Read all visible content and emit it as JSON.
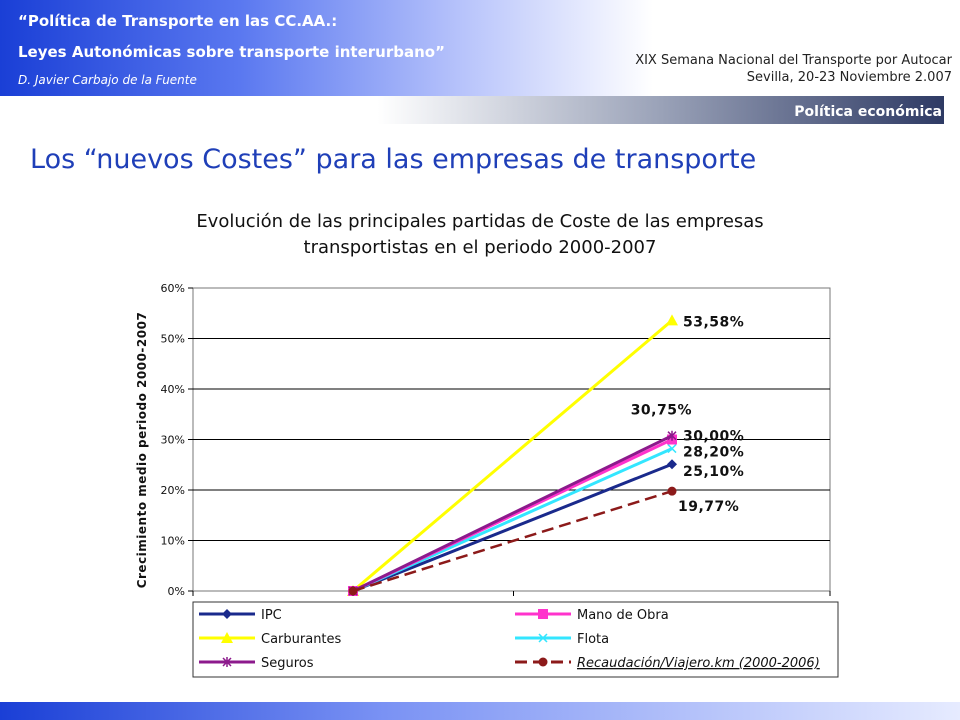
{
  "header": {
    "line1": "“Política de Transporte en las CC.AA.:",
    "line2": "Leyes Autonómicas sobre transporte interurbano”",
    "author": "D. Javier Carbajo de la Fuente",
    "event_line1": "XIX Semana Nacional del Transporte por Autocar",
    "event_line2": "Sevilla, 20-23 Noviembre 2.007",
    "section": "Política económica"
  },
  "page_title": "Los “nuevos Costes” para las empresas de transporte",
  "subtitle_line1": "Evolución de las principales partidas de Coste de las empresas",
  "subtitle_line2": "transportistas en el periodo 2000-2007",
  "colors": {
    "IPC": "#1a2a8c",
    "Mano de Obra": "#ff33cc",
    "Carburantes": "#ffff00",
    "Flota": "#33e6ff",
    "Seguros": "#8c1a8c",
    "Recaudación": "#8c1a1a"
  },
  "chart_data": {
    "type": "line",
    "ylabel": "Crecimiento medio periodo 2000-2007",
    "xlabel": "",
    "ylim": [
      0,
      0.6
    ],
    "yticks": [
      "0%",
      "10%",
      "20%",
      "30%",
      "40%",
      "50%",
      "60%"
    ],
    "x": [
      0,
      1
    ],
    "grid": true,
    "legend_position": "bottom",
    "series": [
      {
        "name": "IPC",
        "values": [
          0,
          0.251
        ],
        "marker": "diamond",
        "dash": false
      },
      {
        "name": "Mano de Obra",
        "values": [
          0,
          0.3
        ],
        "marker": "square",
        "dash": false
      },
      {
        "name": "Carburantes",
        "values": [
          0,
          0.5358
        ],
        "marker": "triangle",
        "dash": false
      },
      {
        "name": "Flota",
        "values": [
          0,
          0.282
        ],
        "marker": "x",
        "dash": false
      },
      {
        "name": "Seguros",
        "values": [
          0,
          0.3075
        ],
        "marker": "star",
        "dash": false
      },
      {
        "name": "Recaudación/Viajero.km (2000-2006)",
        "values": [
          0,
          0.1977
        ],
        "marker": "circle",
        "dash": true
      }
    ],
    "annotations": [
      {
        "text": "53,58%",
        "series": "Carburantes"
      },
      {
        "text": "30,75%",
        "series": "Seguros"
      },
      {
        "text": "30,00%",
        "series": "Mano de Obra"
      },
      {
        "text": "28,20%",
        "series": "Flota"
      },
      {
        "text": "25,10%",
        "series": "IPC"
      },
      {
        "text": "19,77%",
        "series": "Recaudación/Viajero.km (2000-2006)"
      }
    ]
  }
}
